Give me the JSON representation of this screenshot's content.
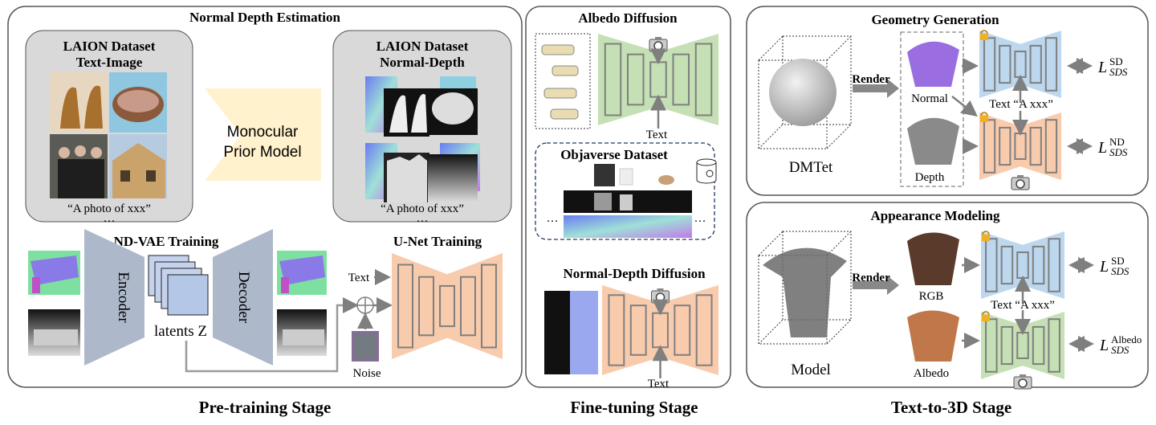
{
  "pretraining": {
    "panel_title": "Normal Depth Estimation",
    "laion_text_image": {
      "line1": "LAION Dataset",
      "line2": "Text-Image",
      "caption": "“A photo of xxx”",
      "ellipsis": "…"
    },
    "laion_normal_depth": {
      "line1": "LAION Dataset",
      "line2": "Normal-Depth",
      "caption": "“A photo of xxx”",
      "ellipsis": "…"
    },
    "prior_model": {
      "line1": "Monocular",
      "line2": "Prior Model"
    },
    "vae_title": "ND-VAE Training",
    "encoder": "Encoder",
    "decoder": "Decoder",
    "latents": "latents Z",
    "unet_title": "U-Net Training",
    "text": "Text",
    "noise": "Noise",
    "stage": "Pre-training Stage"
  },
  "finetuning": {
    "albedo_title": "Albedo Diffusion",
    "albedo_text": "Text",
    "objaverse_title": "Objaverse Dataset",
    "ellipsis": "…",
    "nd_title": "Normal-Depth Diffusion",
    "nd_text": "Text",
    "stage": "Fine-tuning Stage"
  },
  "text_to_3d": {
    "geometry_title": "Geometry Generation",
    "dmtet": "DMTet",
    "render": "Render",
    "normal": "Normal",
    "depth": "Depth",
    "geo_text": "Text “A xxx”",
    "appearance_title": "Appearance Modeling",
    "model": "Model",
    "render2": "Render",
    "rgb": "RGB",
    "albedo": "Albedo",
    "app_text": "Text “A xxx”",
    "losses": [
      {
        "base": "L",
        "sup": "SD",
        "sub": "SDS"
      },
      {
        "base": "L",
        "sup": "ND",
        "sub": "SDS"
      },
      {
        "base": "L",
        "sup": "SD",
        "sub": "SDS"
      },
      {
        "base": "L",
        "sup": "Albedo",
        "sub": "SDS"
      }
    ],
    "stage": "Text-to-3D Stage"
  },
  "colors": {
    "sd_blue": "#bdd7ee",
    "nd_orange": "#f8cbad",
    "albedo_green": "#c5e0b4",
    "prior_yellow": "#fff2cc",
    "vae": "#adb9ca"
  }
}
